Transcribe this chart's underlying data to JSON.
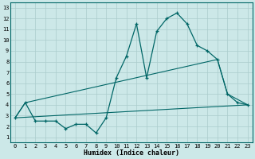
{
  "xlabel": "Humidex (Indice chaleur)",
  "xlim": [
    -0.5,
    23.5
  ],
  "ylim": [
    0.5,
    13.5
  ],
  "xticks": [
    0,
    1,
    2,
    3,
    4,
    5,
    6,
    7,
    8,
    9,
    10,
    11,
    12,
    13,
    14,
    15,
    16,
    17,
    18,
    19,
    20,
    21,
    22,
    23
  ],
  "yticks": [
    1,
    2,
    3,
    4,
    5,
    6,
    7,
    8,
    9,
    10,
    11,
    12,
    13
  ],
  "bg_color": "#cce8e8",
  "line_color": "#006666",
  "grid_color": "#aacccc",
  "line1_x": [
    0,
    1,
    2,
    3,
    4,
    5,
    6,
    7,
    8,
    9,
    10,
    11,
    12,
    13,
    14,
    15,
    16,
    17,
    18,
    19,
    20,
    21,
    22,
    23
  ],
  "line1_y": [
    2.8,
    4.2,
    2.5,
    2.5,
    2.5,
    1.8,
    2.2,
    2.2,
    1.4,
    2.8,
    6.5,
    8.5,
    11.5,
    6.5,
    10.8,
    12.0,
    12.5,
    11.5,
    9.5,
    9.0,
    8.2,
    5.0,
    4.2,
    4.0
  ],
  "line2_x": [
    0,
    23
  ],
  "line2_y": [
    2.8,
    4.0
  ],
  "line3_x": [
    0,
    1,
    20,
    21,
    23
  ],
  "line3_y": [
    2.8,
    4.2,
    8.2,
    5.0,
    4.0
  ]
}
